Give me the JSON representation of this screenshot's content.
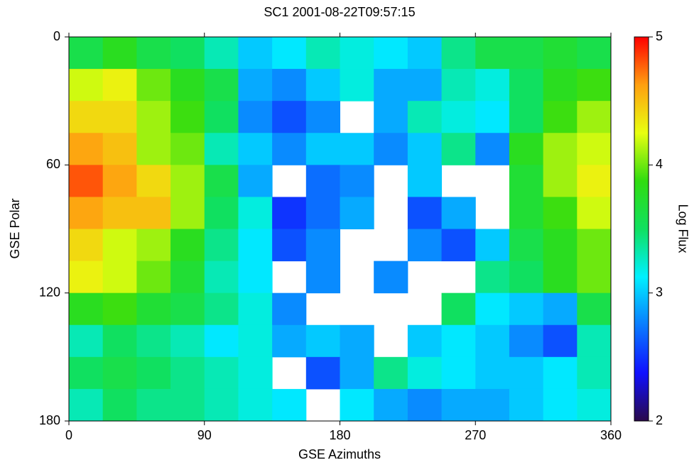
{
  "chart_data": {
    "type": "heatmap",
    "title": "SC1 2001-08-22T09:57:15",
    "x_label": "GSE Azimuths",
    "y_label": "GSE Polar",
    "colorbar_label": "Log Flux",
    "x": [
      11.25,
      33.75,
      56.25,
      78.75,
      101.25,
      123.75,
      146.25,
      168.75,
      191.25,
      213.75,
      236.25,
      258.75,
      281.25,
      303.75,
      326.25,
      348.75
    ],
    "y": [
      7.5,
      22.5,
      37.5,
      52.5,
      67.5,
      82.5,
      97.5,
      112.5,
      127.5,
      142.5,
      157.5,
      172.5
    ],
    "z": [
      [
        3.6,
        3.8,
        3.6,
        3.5,
        3.3,
        3.0,
        3.1,
        3.3,
        3.2,
        3.1,
        3.0,
        3.4,
        3.6,
        3.6,
        3.7,
        3.6
      ],
      [
        4.2,
        4.3,
        4.0,
        3.8,
        3.6,
        2.9,
        2.8,
        3.0,
        3.2,
        2.9,
        2.9,
        3.3,
        3.2,
        3.5,
        3.8,
        3.9
      ],
      [
        4.4,
        4.4,
        4.1,
        3.9,
        3.5,
        2.8,
        2.6,
        2.8,
        null,
        2.9,
        3.3,
        3.2,
        3.1,
        3.5,
        3.9,
        4.1
      ],
      [
        4.6,
        4.5,
        4.1,
        4.0,
        3.3,
        3.0,
        2.8,
        3.0,
        3.0,
        2.8,
        3.0,
        3.4,
        2.8,
        3.8,
        4.1,
        4.2
      ],
      [
        4.8,
        4.6,
        4.4,
        4.1,
        3.6,
        2.9,
        null,
        2.7,
        2.8,
        null,
        3.0,
        null,
        null,
        3.7,
        4.1,
        4.3
      ],
      [
        4.6,
        4.5,
        4.5,
        4.1,
        3.5,
        3.2,
        2.5,
        2.7,
        2.9,
        null,
        2.6,
        2.9,
        null,
        3.7,
        3.9,
        4.2
      ],
      [
        4.4,
        4.2,
        4.1,
        3.8,
        3.4,
        3.1,
        2.6,
        2.8,
        null,
        null,
        2.8,
        2.6,
        3.0,
        3.6,
        3.8,
        4.0
      ],
      [
        4.3,
        4.2,
        4.0,
        3.7,
        3.3,
        3.1,
        null,
        2.8,
        null,
        2.8,
        null,
        null,
        3.4,
        3.5,
        3.8,
        4.0
      ],
      [
        3.8,
        3.9,
        3.7,
        3.6,
        3.4,
        3.2,
        2.8,
        null,
        null,
        null,
        null,
        3.5,
        3.1,
        3.0,
        2.9,
        3.6
      ],
      [
        3.3,
        3.5,
        3.4,
        3.3,
        3.1,
        3.2,
        2.9,
        3.0,
        2.9,
        null,
        3.0,
        3.1,
        3.0,
        2.8,
        2.6,
        3.3
      ],
      [
        3.5,
        3.6,
        3.5,
        3.4,
        3.3,
        3.2,
        null,
        2.6,
        2.9,
        3.4,
        3.2,
        3.1,
        3.0,
        3.0,
        3.1,
        3.3
      ],
      [
        3.3,
        3.5,
        3.4,
        3.4,
        3.3,
        3.2,
        3.1,
        null,
        3.1,
        2.9,
        2.8,
        2.9,
        2.9,
        3.0,
        3.1,
        3.2
      ]
    ],
    "xlim": [
      0,
      360
    ],
    "xticks": [
      0,
      90,
      180,
      270,
      360
    ],
    "ylim": [
      0,
      180
    ],
    "yticks": [
      0,
      60,
      120,
      180
    ],
    "y_inverted": true,
    "clim": [
      2,
      5
    ],
    "cticks": [
      2,
      3,
      4,
      5
    ],
    "colorscale": [
      "#2a0a4a",
      "#1010ff",
      "#0a7cff",
      "#00f0ff",
      "#10e060",
      "#30dc10",
      "#e8ff10",
      "#ffa010",
      "#ff0000"
    ],
    "missing_color": "#ffffff"
  }
}
